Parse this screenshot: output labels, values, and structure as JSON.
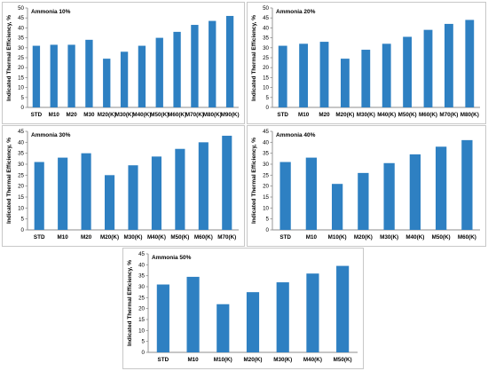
{
  "colors": {
    "bar": "#2e80c2",
    "axis": "#8c8c8c",
    "grid": "none",
    "border": "#c8c8c8"
  },
  "chart_data": [
    {
      "type": "bar",
      "title": "Ammonia 10%",
      "ylabel": "Indicated Thermal Efficiency, %",
      "xlabel": "",
      "ylim": [
        0,
        50
      ],
      "yticks": [
        0,
        5,
        10,
        15,
        20,
        25,
        30,
        35,
        40,
        45,
        50
      ],
      "grid": false,
      "categories": [
        "STD",
        "M10",
        "M20",
        "M30",
        "M20(K)",
        "M30(K)",
        "M40(K)",
        "M50(K)",
        "M60(K)",
        "M70(K)",
        "M80(K)",
        "M90(K)"
      ],
      "values": [
        31,
        31.5,
        31.5,
        34,
        24.5,
        28,
        31,
        35,
        38,
        41.5,
        43.5,
        46
      ]
    },
    {
      "type": "bar",
      "title": "Ammonia 20%",
      "ylabel": "Indicated Thermal Efficiency, %",
      "xlabel": "",
      "ylim": [
        0,
        50
      ],
      "yticks": [
        0,
        5,
        10,
        15,
        20,
        25,
        30,
        35,
        40,
        45,
        50
      ],
      "grid": false,
      "categories": [
        "STD",
        "M10",
        "M20",
        "M20(K)",
        "M30(K)",
        "M40(K)",
        "M50(K)",
        "M60(K)",
        "M70(K)",
        "M80(K)"
      ],
      "values": [
        31,
        32,
        33,
        24.5,
        29,
        32,
        35.5,
        39,
        42,
        44
      ]
    },
    {
      "type": "bar",
      "title": "Ammonia 30%",
      "ylabel": "Indicated Thermal Efficiency, %",
      "xlabel": "",
      "ylim": [
        0,
        45
      ],
      "yticks": [
        0,
        5,
        10,
        15,
        20,
        25,
        30,
        35,
        40,
        45
      ],
      "grid": false,
      "categories": [
        "STD",
        "M10",
        "M20",
        "M20(K)",
        "M30(K)",
        "M40(K)",
        "M50(K)",
        "M60(K)",
        "M70(K)"
      ],
      "values": [
        31,
        33,
        35,
        25,
        29.5,
        33.5,
        37,
        40,
        43
      ]
    },
    {
      "type": "bar",
      "title": "Ammonia 40%",
      "ylabel": "Indicated Thermal Efficiency, %",
      "xlabel": "",
      "ylim": [
        0,
        45
      ],
      "yticks": [
        0,
        5,
        10,
        15,
        20,
        25,
        30,
        35,
        40,
        45
      ],
      "grid": false,
      "categories": [
        "STD",
        "M10",
        "M10(K)",
        "M20(K)",
        "M30(K)",
        "M40(K)",
        "M50(K)",
        "M60(K)"
      ],
      "values": [
        31,
        33,
        21,
        26,
        30.5,
        34.5,
        38,
        41
      ]
    },
    {
      "type": "bar",
      "title": "Ammonia 50%",
      "ylabel": "Indicated Thermal Efficiency, %",
      "xlabel": "",
      "ylim": [
        0,
        45
      ],
      "yticks": [
        0,
        5,
        10,
        15,
        20,
        25,
        30,
        35,
        40,
        45
      ],
      "grid": false,
      "categories": [
        "STD",
        "M10",
        "M10(K)",
        "M20(K)",
        "M30(K)",
        "M40(K)",
        "M50(K)"
      ],
      "values": [
        31,
        34.5,
        22,
        27.5,
        32,
        36,
        39.5
      ]
    }
  ]
}
